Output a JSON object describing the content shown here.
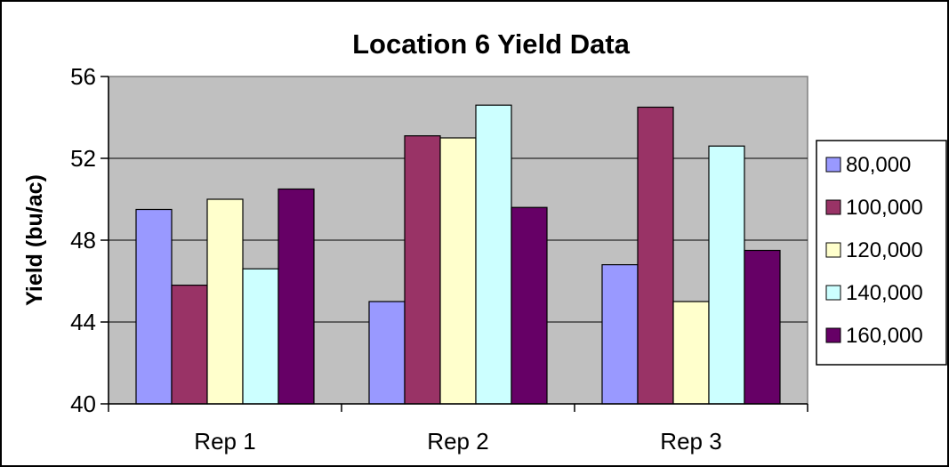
{
  "chart_data": {
    "type": "bar",
    "title": "Location 6 Yield Data",
    "xlabel": "",
    "ylabel": "Yield (bu/ac)",
    "ylim": [
      40,
      56
    ],
    "yticks": [
      "40",
      "44",
      "48",
      "52",
      "56"
    ],
    "grid": true,
    "legend_position": "right",
    "plot_background": "#C0C0C0",
    "categories": [
      "Rep 1",
      "Rep 2",
      "Rep 3"
    ],
    "series": [
      {
        "name": "80,000",
        "color": "#9999FF",
        "values": [
          49.5,
          45.0,
          46.8
        ]
      },
      {
        "name": "100,000",
        "color": "#993366",
        "values": [
          45.8,
          53.1,
          54.5
        ]
      },
      {
        "name": "120,000",
        "color": "#FFFFCC",
        "values": [
          50.0,
          53.0,
          45.0
        ]
      },
      {
        "name": "140,000",
        "color": "#CCFFFF",
        "values": [
          46.6,
          54.6,
          52.6
        ]
      },
      {
        "name": "160,000",
        "color": "#660066",
        "values": [
          50.5,
          49.6,
          47.5
        ]
      }
    ]
  }
}
